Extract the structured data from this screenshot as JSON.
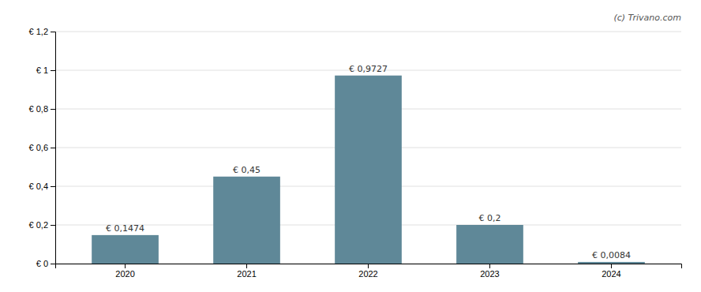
{
  "chart_data": {
    "type": "bar",
    "categories": [
      "2020",
      "2021",
      "2022",
      "2023",
      "2024"
    ],
    "values": [
      0.1474,
      0.45,
      0.9727,
      0.2,
      0.0084
    ],
    "value_labels": [
      "€ 0,1474",
      "€ 0,45",
      "€ 0,9727",
      "€ 0,2",
      "€ 0,0084"
    ],
    "data_labels": true,
    "color": "#5f8898",
    "ylim": [
      0,
      1.2
    ],
    "yticks": [
      {
        "value": 0,
        "label": "€ 0"
      },
      {
        "value": 0.2,
        "label": "€ 0,2"
      },
      {
        "value": 0.4,
        "label": "€ 0,4"
      },
      {
        "value": 0.6,
        "label": "€ 0,6"
      },
      {
        "value": 0.8,
        "label": "€ 0,8"
      },
      {
        "value": 1.0,
        "label": "€ 1"
      },
      {
        "value": 1.2,
        "label": "€ 1,2"
      }
    ],
    "grid": true,
    "annotations": [
      "(c) Trivano.com"
    ]
  }
}
